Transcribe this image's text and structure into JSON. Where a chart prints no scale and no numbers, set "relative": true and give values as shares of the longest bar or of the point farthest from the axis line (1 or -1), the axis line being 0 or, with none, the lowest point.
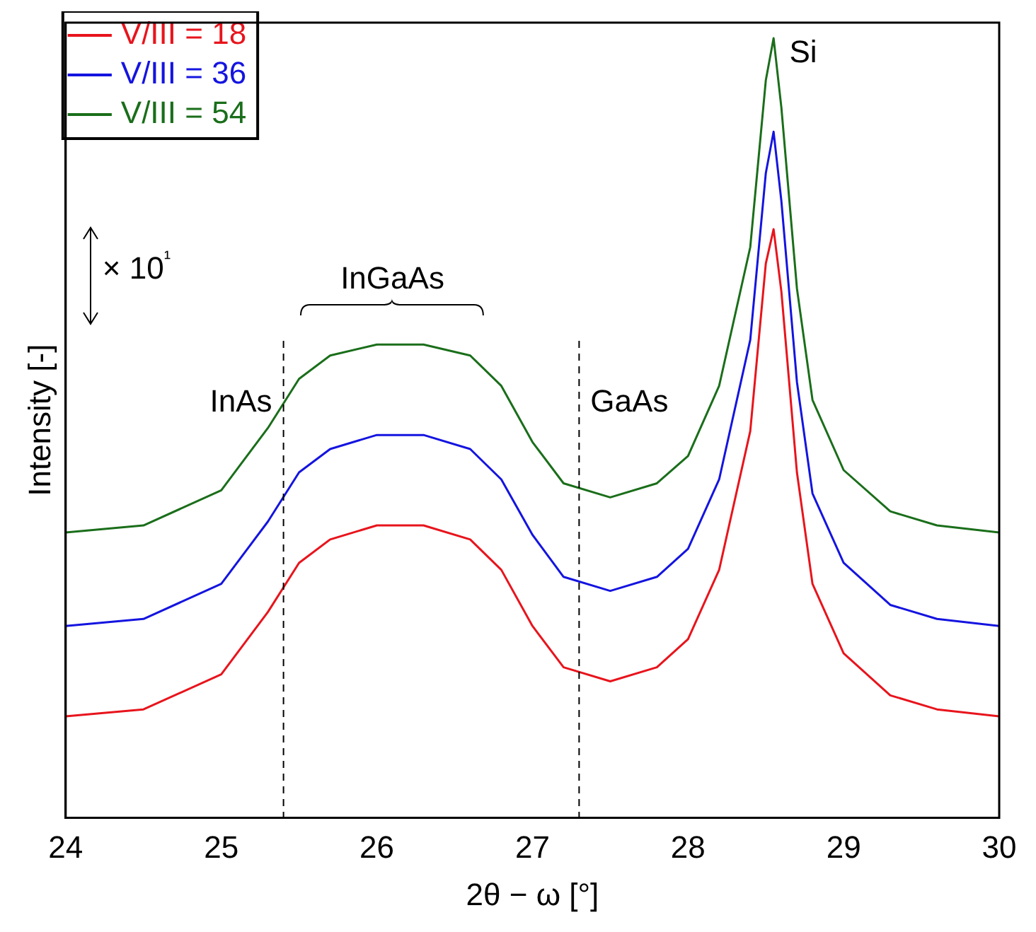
{
  "chart_data": {
    "type": "line",
    "relative": true,
    "xlabel": "2θ − ω [°]",
    "ylabel": "Intensity [-]",
    "xlim": [
      24,
      30
    ],
    "xticks": [
      24,
      25,
      26,
      27,
      28,
      29,
      30
    ],
    "grid": false,
    "legend": "top left",
    "marker": "none",
    "line_style": "solid",
    "x": [
      24,
      24.5,
      25,
      25.3,
      25.5,
      25.7,
      26,
      26.3,
      26.6,
      26.8,
      27,
      27.2,
      27.5,
      27.8,
      28,
      28.2,
      28.4,
      28.5,
      28.55,
      28.6,
      28.7,
      28.8,
      29,
      29.3,
      29.6,
      30
    ],
    "series": [
      {
        "name": "V/III = 18",
        "color": "#e8141c",
        "values": [
          0.13,
          0.139,
          0.184,
          0.264,
          0.327,
          0.357,
          0.375,
          0.375,
          0.357,
          0.318,
          0.246,
          0.193,
          0.175,
          0.193,
          0.229,
          0.318,
          0.496,
          0.711,
          0.755,
          0.675,
          0.443,
          0.3,
          0.211,
          0.157,
          0.139,
          0.13
        ]
      },
      {
        "name": "V/III = 36",
        "color": "#1414e0",
        "values": [
          0.246,
          0.255,
          0.3,
          0.38,
          0.443,
          0.473,
          0.491,
          0.491,
          0.473,
          0.434,
          0.363,
          0.309,
          0.291,
          0.309,
          0.345,
          0.434,
          0.613,
          0.827,
          0.88,
          0.791,
          0.559,
          0.416,
          0.327,
          0.273,
          0.255,
          0.246
        ]
      },
      {
        "name": "V/III = 54",
        "color": "#1a6e1a",
        "values": [
          0.366,
          0.375,
          0.42,
          0.5,
          0.563,
          0.593,
          0.607,
          0.607,
          0.593,
          0.554,
          0.482,
          0.429,
          0.411,
          0.429,
          0.464,
          0.554,
          0.732,
          0.946,
          1,
          0.911,
          0.679,
          0.536,
          0.446,
          0.393,
          0.375,
          0.366
        ]
      }
    ],
    "ref_lines": [
      {
        "axis": "x",
        "value": 25.4,
        "label": "InAs",
        "line_style": "dashed",
        "color": "#000000"
      },
      {
        "axis": "x",
        "value": 27.3,
        "label": "GaAs",
        "line_style": "dashed",
        "color": "#000000"
      }
    ],
    "annotations": [
      "InGaAs",
      "Si",
      "× 10¹"
    ]
  }
}
